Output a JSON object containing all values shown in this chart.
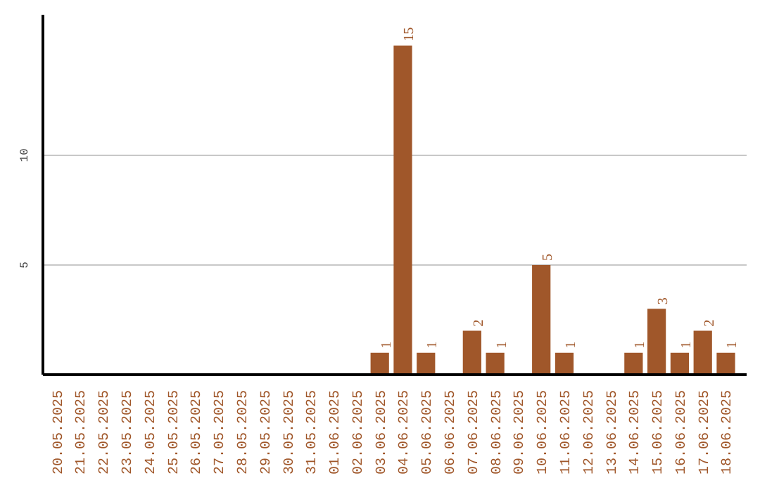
{
  "chart_data": {
    "type": "bar",
    "categories": [
      "20.05.2025",
      "21.05.2025",
      "22.05.2025",
      "23.05.2025",
      "24.05.2025",
      "25.05.2025",
      "26.05.2025",
      "27.05.2025",
      "28.05.2025",
      "29.05.2025",
      "30.05.2025",
      "31.05.2025",
      "01.06.2025",
      "02.06.2025",
      "03.06.2025",
      "04.06.2025",
      "05.06.2025",
      "06.06.2025",
      "07.06.2025",
      "08.06.2025",
      "09.06.2025",
      "10.06.2025",
      "11.06.2025",
      "12.06.2025",
      "13.06.2025",
      "14.06.2025",
      "15.06.2025",
      "16.06.2025",
      "17.06.2025",
      "18.06.2025"
    ],
    "values": [
      0,
      0,
      0,
      0,
      0,
      0,
      0,
      0,
      0,
      0,
      0,
      0,
      0,
      0,
      1,
      15,
      1,
      0,
      2,
      1,
      0,
      5,
      1,
      0,
      0,
      1,
      3,
      1,
      2,
      1
    ],
    "value_labels": [
      null,
      null,
      null,
      null,
      null,
      null,
      null,
      null,
      null,
      null,
      null,
      null,
      null,
      null,
      "1",
      "15",
      "1",
      null,
      "2",
      "1",
      null,
      "5",
      "1",
      null,
      null,
      "1",
      "3",
      "1",
      "2",
      "1"
    ],
    "color": "#a0572a",
    "ylim": [
      0,
      16.4
    ],
    "yticks": [
      5,
      10
    ],
    "grid": "y"
  }
}
